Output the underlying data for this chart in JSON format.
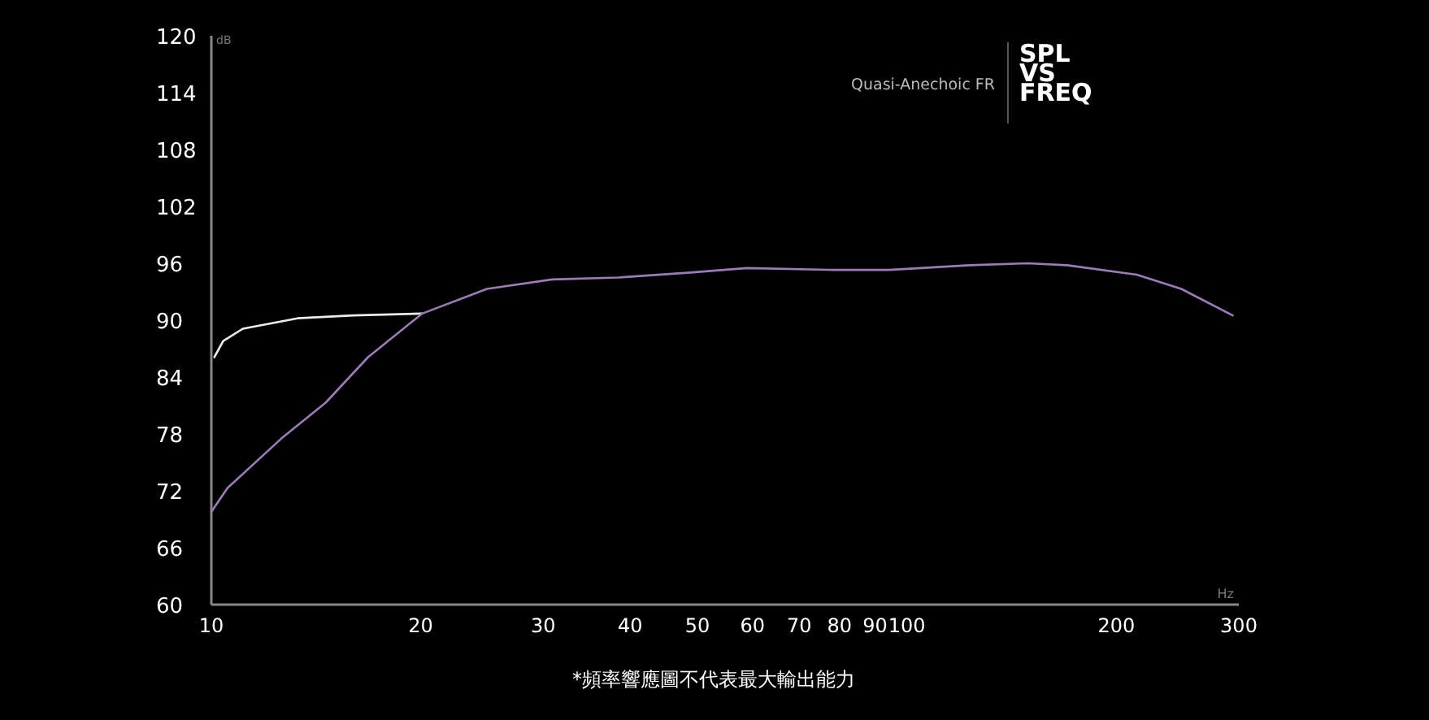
{
  "chart_data": {
    "type": "line",
    "title": "SPL VS FREQ",
    "subtitle": "Quasi-Anechoic FR",
    "xlabel": "Hz",
    "ylabel": "dB",
    "annotations": [
      "*頻率響應圖不代表最大輸出能力"
    ],
    "log": "x",
    "xlim": [
      10,
      300
    ],
    "ylim": [
      60,
      120
    ],
    "xticks": [
      10,
      20,
      30,
      40,
      50,
      60,
      70,
      80,
      90,
      100,
      200,
      300
    ],
    "yticks": [
      60,
      66,
      72,
      78,
      84,
      90,
      96,
      102,
      108,
      114,
      120
    ],
    "grid": false,
    "marker": "none",
    "line_style": "solid",
    "series": [
      {
        "color": "#e6eeee",
        "x": [
          10.1,
          10.4,
          11.1,
          13.3,
          16.0,
          20.1
        ],
        "values": [
          86.1,
          87.8,
          89.1,
          90.2,
          90.5,
          90.7
        ]
      },
      {
        "color": "#9b7bb8",
        "x": [
          10,
          10.55,
          12.6,
          14.6,
          16.8,
          20.1,
          24.9,
          30.9,
          38.4,
          48.4,
          58.9,
          78.6,
          94.3,
          123,
          149,
          170,
          214,
          248,
          294
        ],
        "values": [
          69.8,
          72.3,
          77.5,
          81.3,
          86.1,
          90.7,
          93.3,
          94.3,
          94.5,
          95.0,
          95.5,
          95.3,
          95.3,
          95.8,
          96.0,
          95.8,
          94.8,
          93.3,
          90.5
        ]
      }
    ]
  }
}
